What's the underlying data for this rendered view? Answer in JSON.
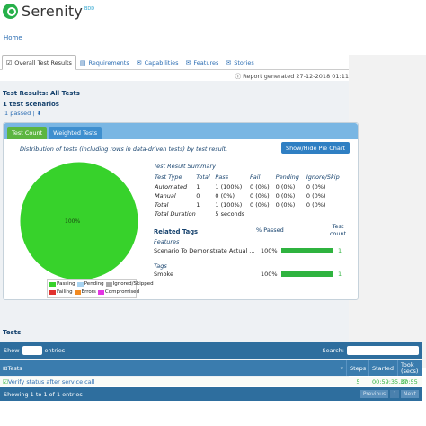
{
  "brand": {
    "name": "Serenity",
    "version": "BDD"
  },
  "nav": {
    "home": "Home"
  },
  "tabs": [
    {
      "label": "Overall Test Results",
      "icon": "checkbox-icon"
    },
    {
      "label": "Requirements",
      "icon": "book-icon"
    },
    {
      "label": "Capabilities",
      "icon": "comments-icon"
    },
    {
      "label": "Features",
      "icon": "comments-icon"
    },
    {
      "label": "Stories",
      "icon": "comments-icon"
    }
  ],
  "report_generated": "Report generated 27-12-2018 01:11",
  "results": {
    "title": "Test Results: All Tests",
    "scenarios_title": "1 test scenarios",
    "passed_link": "1 passed"
  },
  "panel": {
    "tabs": [
      "Test Count",
      "Weighted Tests"
    ],
    "distribution_text": "Distribution of tests (including rows in data-driven tests) by test result.",
    "pie_button": "Show/Hide Pie Chart"
  },
  "chart_data": {
    "type": "pie",
    "slices": [
      {
        "label": "Passing",
        "value": 100,
        "color": "#37d22b"
      }
    ],
    "slice_label": "100%",
    "legend": [
      {
        "label": "Passing",
        "color": "#37d22b"
      },
      {
        "label": "Pending",
        "color": "#a7d3f1"
      },
      {
        "label": "Ignored/Skipped",
        "color": "#a9a9a9"
      },
      {
        "label": "Failing",
        "color": "#e0322f"
      },
      {
        "label": "Errors",
        "color": "#f28a21"
      },
      {
        "label": "Compromised",
        "color": "#e335e3"
      }
    ]
  },
  "summary": {
    "title": "Test Result Summary",
    "headers": [
      "Test Type",
      "Total",
      "Pass",
      "Fail",
      "Pending",
      "Ignore/Skip"
    ],
    "rows": [
      [
        "Automated",
        "1",
        "1 (100%)",
        "0 (0%)",
        "0 (0%)",
        "0 (0%)"
      ],
      [
        "Manual",
        "0",
        "0 (0%)",
        "0 (0%)",
        "0 (0%)",
        "0 (0%)"
      ],
      [
        "Total",
        "1",
        "1 (100%)",
        "0 (0%)",
        "0 (0%)",
        "0 (0%)"
      ]
    ],
    "duration_label": "Total Duration",
    "duration_value": "5 seconds"
  },
  "related_tags": {
    "title": "Related Tags",
    "passed_header": "% Passed",
    "count_header": "Test count",
    "groups": [
      {
        "heading": "Features",
        "name": "Scenario To Demonstrate Actual ...",
        "pct": "100%",
        "ratio": 1.0,
        "count": "1"
      },
      {
        "heading": "Tags",
        "name": "Smoke",
        "pct": "100%",
        "ratio": 1.0,
        "count": "1"
      }
    ]
  },
  "legend_colors": {
    "passing": "#37d22b"
  },
  "tests": {
    "title": "Tests",
    "show": "Show",
    "entries": "entries",
    "search": "Search:",
    "columns": [
      "Tests",
      "Steps",
      "Started",
      "Took (secs)"
    ],
    "row": {
      "name": "Verify status after service call",
      "steps": "5",
      "started": "00:59:35.37",
      "took": "00:55"
    },
    "footer": "Showing 1 to 1 of 1 entries",
    "pager": [
      "Previous",
      "1",
      "Next"
    ]
  }
}
